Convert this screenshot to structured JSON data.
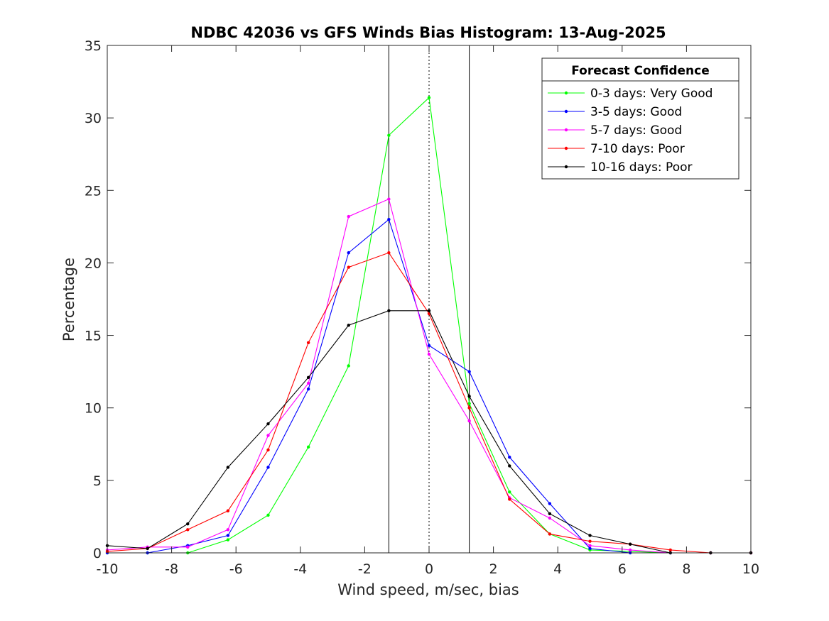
{
  "chart_data": {
    "type": "line",
    "title": "NDBC 42036 vs GFS Winds Bias Histogram: 13-Aug-2025",
    "xlabel": "Wind speed, m/sec, bias",
    "ylabel": "Percentage",
    "xlim": [
      -10,
      10
    ],
    "ylim": [
      0,
      35
    ],
    "xticks": [
      -10,
      -8,
      -6,
      -4,
      -2,
      0,
      2,
      4,
      6,
      8,
      10
    ],
    "yticks": [
      0,
      5,
      10,
      15,
      20,
      25,
      30,
      35
    ],
    "grid": false,
    "legend": {
      "title": "Forecast Confidence",
      "placement": "top-right"
    },
    "reference_lines": [
      {
        "x": -1.25,
        "style": "solid"
      },
      {
        "x": 0,
        "style": "dotted"
      },
      {
        "x": 1.25,
        "style": "solid"
      }
    ],
    "x": [
      -10,
      -8.75,
      -7.5,
      -6.25,
      -5,
      -3.75,
      -2.5,
      -1.25,
      0,
      1.25,
      2.5,
      3.75,
      5,
      6.25,
      7.5,
      8.75,
      10
    ],
    "series": [
      {
        "name": "0-3 days: Very Good",
        "color": "#00ff00",
        "values": [
          0,
          0,
          0,
          0.9,
          2.6,
          7.3,
          12.9,
          28.8,
          31.4,
          10.3,
          4.2,
          1.3,
          0.2,
          0.1,
          0,
          0,
          0
        ]
      },
      {
        "name": "3-5 days: Good",
        "color": "#0000ff",
        "values": [
          0,
          0,
          0.5,
          1.2,
          5.9,
          11.3,
          20.7,
          23.0,
          14.3,
          12.5,
          6.6,
          3.4,
          0.3,
          0,
          0,
          0,
          0
        ]
      },
      {
        "name": "5-7 days: Good",
        "color": "#ff00ff",
        "values": [
          0.2,
          0.4,
          0.4,
          1.6,
          8.1,
          11.7,
          23.2,
          24.4,
          13.7,
          9.1,
          3.8,
          2.4,
          0.5,
          0.2,
          0,
          0,
          0
        ]
      },
      {
        "name": "7-10 days: Poor",
        "color": "#ff0000",
        "values": [
          0.1,
          0.3,
          1.6,
          2.9,
          7.1,
          14.5,
          19.7,
          20.7,
          16.5,
          10.0,
          3.7,
          1.3,
          0.8,
          0.6,
          0.2,
          0,
          0
        ]
      },
      {
        "name": "10-16 days: Poor",
        "color": "#000000",
        "values": [
          0.5,
          0.3,
          2.0,
          5.9,
          8.9,
          12.1,
          15.7,
          16.7,
          16.7,
          10.8,
          6.0,
          2.7,
          1.2,
          0.6,
          0,
          0,
          0
        ]
      }
    ]
  }
}
